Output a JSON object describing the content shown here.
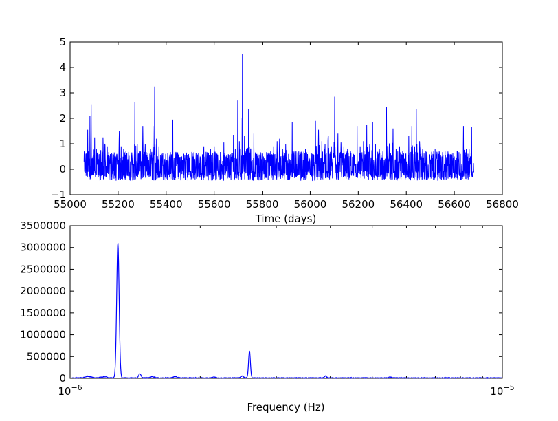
{
  "colors": {
    "line": "#0000ff",
    "axes": "#000000",
    "background": "#ffffff"
  },
  "chart_data": [
    {
      "type": "line",
      "title": "",
      "xlabel": "Time (days)",
      "ylabel": "",
      "xlim": [
        55000,
        56800
      ],
      "ylim": [
        -1,
        5
      ],
      "xticks": [
        55000,
        55200,
        55400,
        55600,
        55800,
        56000,
        56200,
        56400,
        56600,
        56800
      ],
      "xtick_labels": [
        "55000",
        "55200",
        "55400",
        "55600",
        "55800",
        "56000",
        "56200",
        "56400",
        "56600",
        "56800"
      ],
      "yticks": [
        -1,
        0,
        1,
        2,
        3,
        4,
        5
      ],
      "ytick_labels": [
        "−1",
        "0",
        "1",
        "2",
        "3",
        "4",
        "5"
      ],
      "grid": false,
      "series": [
        {
          "data_range": [
            55058,
            56682
          ],
          "baseline": 0.1,
          "noise_range": [
            -0.45,
            0.9
          ],
          "points": [
            [
              55058,
              0.3
            ],
            [
              55068,
              0.6
            ],
            [
              55073,
              1.55
            ],
            [
              55077,
              0.7
            ],
            [
              55083,
              2.1
            ],
            [
              55088,
              2.55
            ],
            [
              55095,
              0.5
            ],
            [
              55102,
              1.25
            ],
            [
              55110,
              0.8
            ],
            [
              55118,
              0.4
            ],
            [
              55128,
              0.75
            ],
            [
              55137,
              1.25
            ],
            [
              55145,
              1.0
            ],
            [
              55155,
              0.9
            ],
            [
              55165,
              0.4
            ],
            [
              55178,
              0.6
            ],
            [
              55190,
              0.5
            ],
            [
              55205,
              1.5
            ],
            [
              55213,
              0.9
            ],
            [
              55223,
              0.8
            ],
            [
              55232,
              0.7
            ],
            [
              55245,
              0.4
            ],
            [
              55258,
              0.5
            ],
            [
              55270,
              2.65
            ],
            [
              55280,
              1.0
            ],
            [
              55290,
              0.7
            ],
            [
              55303,
              1.7
            ],
            [
              55313,
              1.0
            ],
            [
              55325,
              0.5
            ],
            [
              55335,
              0.8
            ],
            [
              55345,
              1.7
            ],
            [
              55352,
              3.25
            ],
            [
              55360,
              1.2
            ],
            [
              55370,
              0.9
            ],
            [
              55385,
              0.5
            ],
            [
              55398,
              0.6
            ],
            [
              55413,
              0.5
            ],
            [
              55428,
              1.95
            ],
            [
              55440,
              0.6
            ],
            [
              55455,
              0.4
            ],
            [
              55470,
              0.2
            ],
            [
              55485,
              0.65
            ],
            [
              55498,
              0.5
            ],
            [
              55512,
              0.5
            ],
            [
              55528,
              0.5
            ],
            [
              55542,
              0.5
            ],
            [
              55557,
              0.9
            ],
            [
              55570,
              0.4
            ],
            [
              55585,
              0.8
            ],
            [
              55600,
              0.9
            ],
            [
              55612,
              0.6
            ],
            [
              55628,
              0.5
            ],
            [
              55640,
              1.05
            ],
            [
              55653,
              0.4
            ],
            [
              55665,
              0.4
            ],
            [
              55680,
              1.35
            ],
            [
              55688,
              0.8
            ],
            [
              55698,
              2.7
            ],
            [
              55705,
              1.1
            ],
            [
              55712,
              2.0
            ],
            [
              55718,
              4.5
            ],
            [
              55726,
              1.3
            ],
            [
              55735,
              0.8
            ],
            [
              55743,
              2.35
            ],
            [
              55752,
              0.8
            ],
            [
              55765,
              1.4
            ],
            [
              55778,
              0.6
            ],
            [
              55792,
              0.4
            ],
            [
              55805,
              0.5
            ],
            [
              55820,
              0.4
            ],
            [
              55835,
              0.7
            ],
            [
              55848,
              0.9
            ],
            [
              55862,
              1.1
            ],
            [
              55872,
              1.2
            ],
            [
              55885,
              0.8
            ],
            [
              55898,
              1.0
            ],
            [
              55910,
              0.6
            ],
            [
              55925,
              1.85
            ],
            [
              55938,
              0.7
            ],
            [
              55952,
              0.7
            ],
            [
              55967,
              0.6
            ],
            [
              55980,
              0.8
            ],
            [
              55995,
              0.5
            ],
            [
              56008,
              0.6
            ],
            [
              56022,
              1.9
            ],
            [
              56035,
              1.55
            ],
            [
              56048,
              1.1
            ],
            [
              56062,
              1.0
            ],
            [
              56075,
              1.3
            ],
            [
              56088,
              0.9
            ],
            [
              56102,
              2.85
            ],
            [
              56115,
              1.4
            ],
            [
              56128,
              1.05
            ],
            [
              56140,
              0.9
            ],
            [
              56155,
              0.8
            ],
            [
              56168,
              0.7
            ],
            [
              56180,
              0.6
            ],
            [
              56195,
              1.7
            ],
            [
              56208,
              0.9
            ],
            [
              56222,
              1.1
            ],
            [
              56235,
              1.75
            ],
            [
              56248,
              1.0
            ],
            [
              56260,
              1.85
            ],
            [
              56272,
              1.0
            ],
            [
              56288,
              0.8
            ],
            [
              56302,
              0.7
            ],
            [
              56318,
              2.45
            ],
            [
              56330,
              1.0
            ],
            [
              56345,
              1.6
            ],
            [
              56358,
              0.8
            ],
            [
              56372,
              0.9
            ],
            [
              56385,
              0.7
            ],
            [
              56398,
              0.6
            ],
            [
              56410,
              1.3
            ],
            [
              56423,
              1.7
            ],
            [
              56435,
              0.9
            ],
            [
              56442,
              2.35
            ],
            [
              56455,
              1.1
            ],
            [
              56468,
              0.8
            ],
            [
              56482,
              0.7
            ],
            [
              56495,
              0.5
            ],
            [
              56508,
              0.6
            ],
            [
              56520,
              0.8
            ],
            [
              56535,
              0.6
            ],
            [
              56548,
              0.5
            ],
            [
              56562,
              0.7
            ],
            [
              56575,
              0.6
            ],
            [
              56588,
              0.6
            ],
            [
              56600,
              0.5
            ],
            [
              56612,
              0.7
            ],
            [
              56625,
              0.6
            ],
            [
              56638,
              1.7
            ],
            [
              56650,
              0.8
            ],
            [
              56662,
              0.8
            ],
            [
              56672,
              1.65
            ],
            [
              56682,
              0.9
            ]
          ]
        }
      ]
    },
    {
      "type": "line",
      "title": "",
      "xlabel": "Frequency (Hz)",
      "ylabel": "",
      "xscale": "log",
      "xlim": [
        1e-06,
        1e-05
      ],
      "ylim": [
        0,
        3500000
      ],
      "xticks": [
        1e-06,
        1e-05
      ],
      "xtick_labels": [
        {
          "base": "10",
          "exp": "−6"
        },
        {
          "base": "10",
          "exp": "−5"
        }
      ],
      "yticks": [
        0,
        500000,
        1000000,
        1500000,
        2000000,
        2500000,
        3000000,
        3500000
      ],
      "ytick_labels": [
        "0",
        "500000",
        "1000000",
        "1500000",
        "2000000",
        "2500000",
        "3000000",
        "3500000"
      ],
      "grid": false,
      "series": [
        {
          "floor": 12000,
          "peaks": [
            {
              "freq": 1.29e-06,
              "power": 3100000,
              "width": 0.004
            },
            {
              "freq": 2.6e-06,
              "power": 620000,
              "width": 0.003
            },
            {
              "freq": 1.45e-06,
              "power": 90000,
              "width": 0.004
            },
            {
              "freq": 1.1e-06,
              "power": 35000,
              "width": 0.01
            },
            {
              "freq": 1.2e-06,
              "power": 25000,
              "width": 0.01
            },
            {
              "freq": 1.55e-06,
              "power": 28000,
              "width": 0.006
            },
            {
              "freq": 1.75e-06,
              "power": 30000,
              "width": 0.006
            },
            {
              "freq": 2.5e-06,
              "power": 40000,
              "width": 0.005
            },
            {
              "freq": 3.9e-06,
              "power": 45000,
              "width": 0.003
            },
            {
              "freq": 2.15e-06,
              "power": 20000,
              "width": 0.006
            },
            {
              "freq": 5.5e-06,
              "power": 18000,
              "width": 0.004
            }
          ]
        }
      ]
    }
  ]
}
